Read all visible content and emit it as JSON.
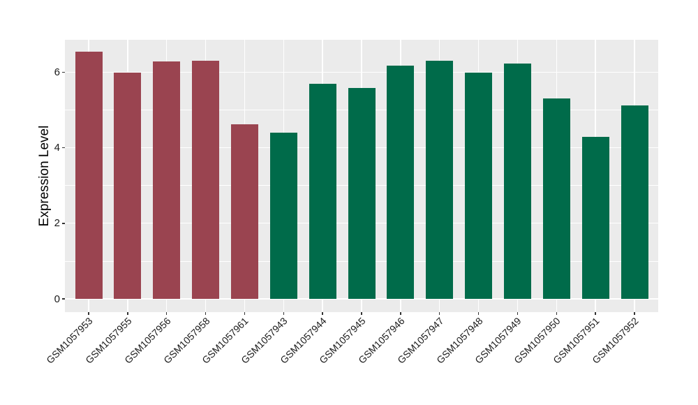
{
  "chart": {
    "panel_background_color": "#EBEBEB",
    "grid_color": "#FFFFFF",
    "tick_mark_color": "#333333",
    "axis_text_color": "#1a1a1a",
    "group1_color": "#9A4450",
    "group2_color": "#006B4A"
  },
  "chart_data": {
    "type": "bar",
    "title": "",
    "xlabel": "",
    "ylabel": "Expression Level",
    "categories": [
      "GSM1057953",
      "GSM1057955",
      "GSM1057956",
      "GSM1057958",
      "GSM1057961",
      "GSM1057943",
      "GSM1057944",
      "GSM1057945",
      "GSM1057946",
      "GSM1057947",
      "GSM1057948",
      "GSM1057949",
      "GSM1057950",
      "GSM1057951",
      "GSM1057952"
    ],
    "values": [
      6.55,
      5.98,
      6.29,
      6.31,
      4.62,
      4.4,
      5.7,
      5.59,
      6.17,
      6.3,
      5.99,
      6.23,
      5.3,
      4.29,
      5.12
    ],
    "bar_colors": [
      "#9A4450",
      "#9A4450",
      "#9A4450",
      "#9A4450",
      "#9A4450",
      "#006B4A",
      "#006B4A",
      "#006B4A",
      "#006B4A",
      "#006B4A",
      "#006B4A",
      "#006B4A",
      "#006B4A",
      "#006B4A",
      "#006B4A"
    ],
    "yticks": [
      0,
      2,
      4,
      6
    ],
    "minor_yticks": [
      1,
      3,
      5
    ],
    "ylim": [
      -0.33,
      6.86
    ],
    "grid": true,
    "legend": false,
    "x_label_rotation_deg": 45
  }
}
